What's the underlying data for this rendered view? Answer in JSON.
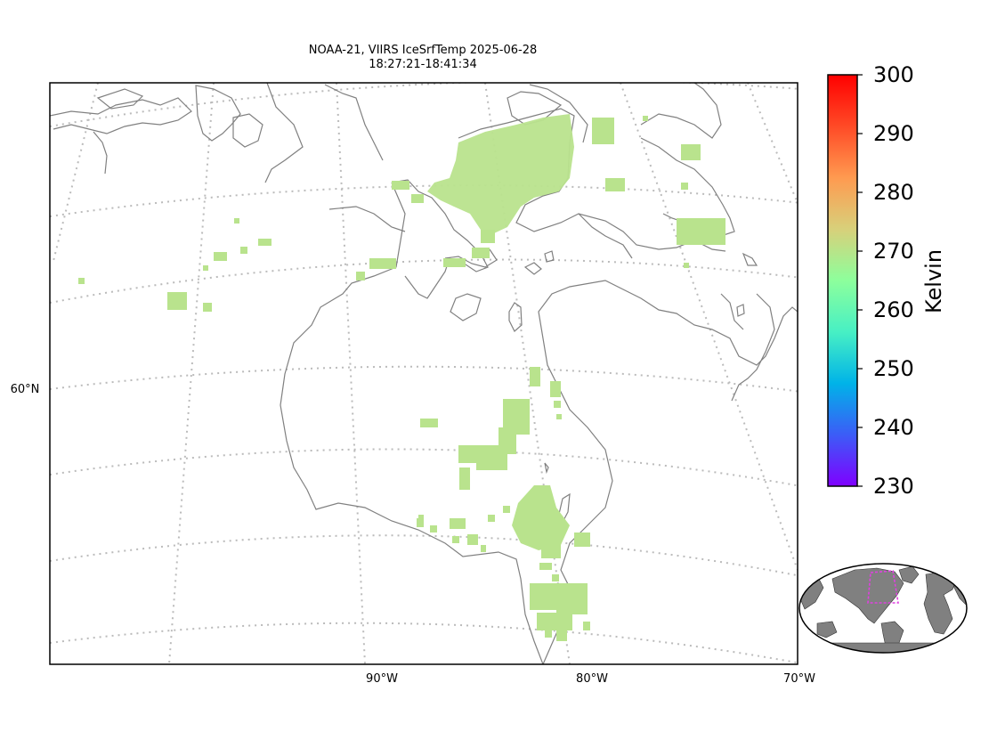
{
  "title": {
    "line1": "NOAA-21, VIIRS IceSrfTemp 2025-06-28",
    "line2": "18:27:21-18:41:34"
  },
  "axes": {
    "lat_label": "60°N",
    "lon_labels": [
      "90°W",
      "80°W",
      "70°W"
    ]
  },
  "colorbar": {
    "label": "Kelvin",
    "min": 230,
    "max": 300,
    "ticks": [
      "300",
      "290",
      "280",
      "270",
      "260",
      "250",
      "240",
      "230"
    ],
    "colormap": "rainbow",
    "stops": [
      "#7f00ff",
      "#3c5cf7",
      "#00b3e8",
      "#47f0c4",
      "#8dff9c",
      "#d8d07a",
      "#ff9a50",
      "#ff4a26",
      "#ff0000"
    ]
  },
  "data_color": "#b9e38d",
  "inset": {
    "land_color": "#808080",
    "ocean_color": "#ffffff",
    "highlight_color": "#e040e0"
  },
  "map": {
    "coastline_color": "#808080",
    "gridline_color": "#bbbbbb"
  }
}
